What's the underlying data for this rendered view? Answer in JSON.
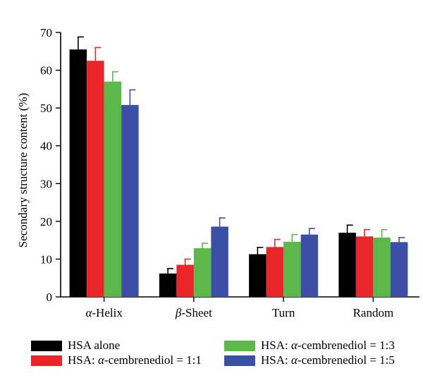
{
  "chart_data": {
    "type": "bar",
    "title": "",
    "xlabel": "",
    "ylabel": "Secondary structure content (%)",
    "ylim": [
      0,
      70
    ],
    "yticks": [
      0,
      10,
      20,
      30,
      40,
      50,
      60,
      70
    ],
    "grid": false,
    "legend_position": "bottom",
    "categories": [
      "α-Helix",
      "β-Sheet",
      "Turn",
      "Random"
    ],
    "category_labels": [
      {
        "italic": "α",
        "rest": "-Helix"
      },
      {
        "italic": "β",
        "rest": "-Sheet"
      },
      {
        "italic": "",
        "rest": "Turn"
      },
      {
        "italic": "",
        "rest": "Random"
      }
    ],
    "series": [
      {
        "name": "HSA alone",
        "legend_parts": {
          "before": "HSA alone",
          "italic": "",
          "after": ""
        },
        "color": "#000000",
        "values": [
          65.5,
          6.2,
          11.3,
          17.0
        ],
        "errors": [
          3.3,
          1.3,
          1.8,
          2.0
        ]
      },
      {
        "name": "HSA: α-cembrenediol = 1:1",
        "legend_parts": {
          "before": "HSA: ",
          "italic": "α",
          "after": "-cembrenediol = 1:1"
        },
        "color": "#e8262a",
        "values": [
          62.5,
          8.5,
          13.2,
          16.0
        ],
        "errors": [
          3.5,
          1.5,
          2.0,
          1.8
        ]
      },
      {
        "name": "HSA: α-cembrenediol = 1:3",
        "legend_parts": {
          "before": "HSA: ",
          "italic": "α",
          "after": "-cembrenediol = 1:3"
        },
        "color": "#5db84b",
        "values": [
          57.0,
          12.9,
          14.6,
          15.7
        ],
        "errors": [
          2.6,
          1.3,
          1.9,
          2.1
        ]
      },
      {
        "name": "HSA: α-cembrenediol = 1:5",
        "legend_parts": {
          "before": "HSA: ",
          "italic": "α",
          "after": "-cembrenediol = 1:5"
        },
        "color": "#3a4fa5",
        "values": [
          50.8,
          18.6,
          16.5,
          14.5
        ],
        "errors": [
          4.0,
          2.3,
          1.6,
          1.2
        ]
      }
    ]
  }
}
